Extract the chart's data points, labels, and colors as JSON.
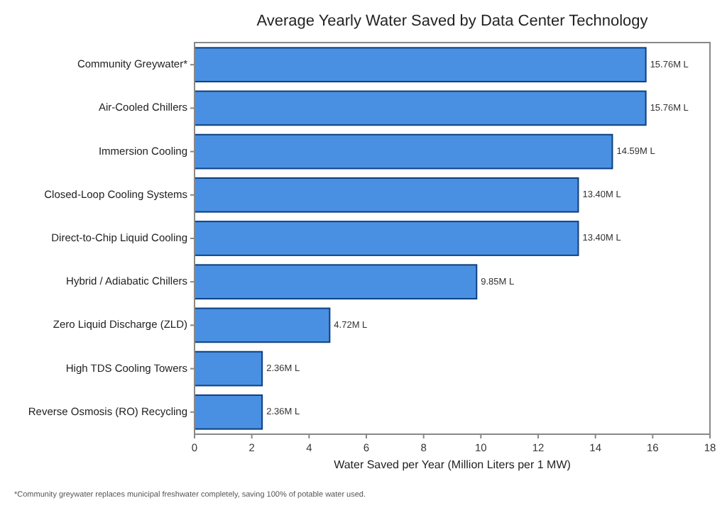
{
  "chart_data": {
    "type": "bar",
    "orientation": "horizontal",
    "title": "Average Yearly Water Saved by Data Center Technology",
    "xlabel": "Water Saved per Year (Million Liters per 1 MW)",
    "categories": [
      "Community Greywater*",
      "Air-Cooled Chillers",
      "Immersion Cooling",
      "Closed-Loop Cooling Systems",
      "Direct-to-Chip Liquid Cooling",
      "Hybrid / Adiabatic Chillers",
      "Zero Liquid Discharge (ZLD)",
      "High TDS Cooling Towers",
      "Reverse Osmosis (RO) Recycling"
    ],
    "values": [
      15.76,
      15.76,
      14.59,
      13.4,
      13.4,
      9.85,
      4.72,
      2.36,
      2.36
    ],
    "value_labels": [
      "15.76M L",
      "15.76M L",
      "14.59M L",
      "13.40M L",
      "13.40M L",
      "9.85M L",
      "4.72M L",
      "2.36M L",
      "2.36M L"
    ],
    "color": "#4a90e2",
    "xlim": [
      0,
      18
    ],
    "xticks": [
      0,
      2,
      4,
      6,
      8,
      10,
      12,
      14,
      16,
      18
    ],
    "grid": false,
    "annotations": [
      "*Community greywater replaces municipal freshwater completely, saving 100% of potable water used."
    ]
  }
}
